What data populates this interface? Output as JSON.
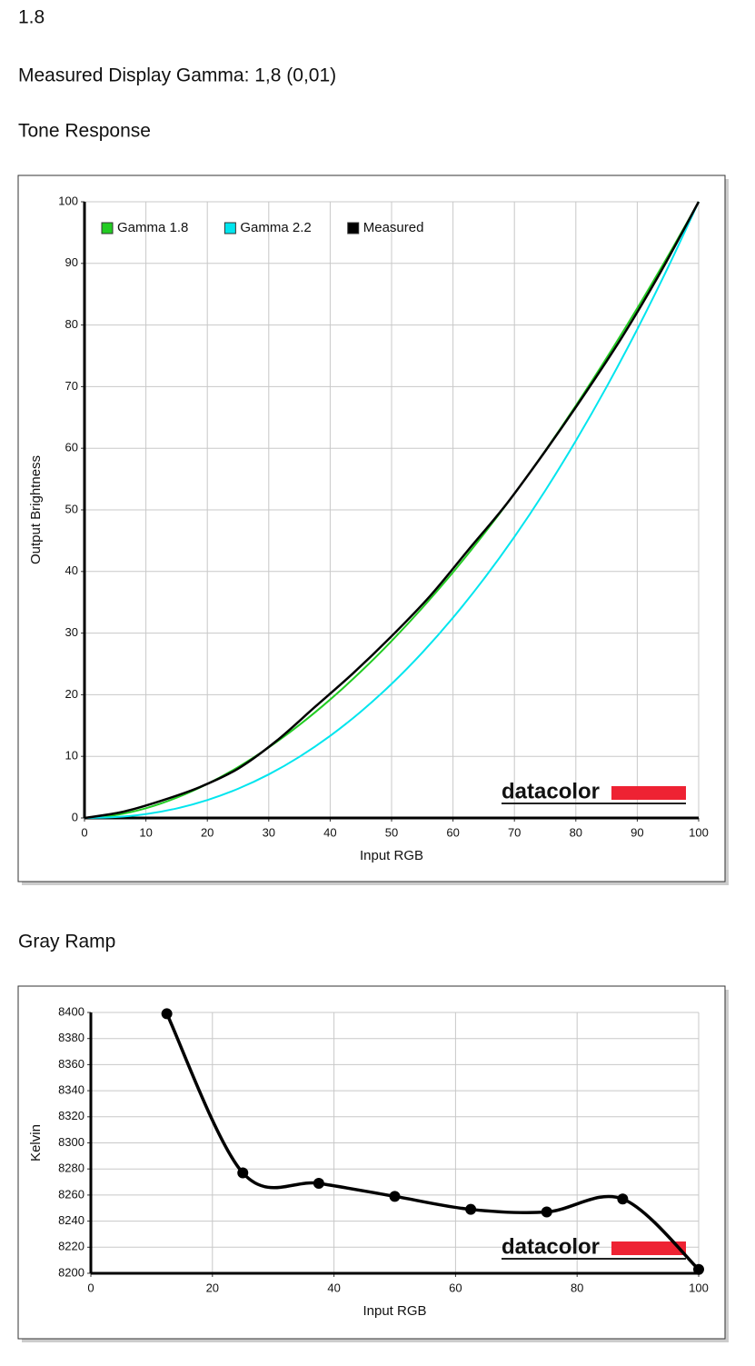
{
  "texts": {
    "gamma_value": "1.8",
    "measured": "Measured Display Gamma: 1,8 (0,01)",
    "tone_heading": "Tone Response",
    "gray_heading": "Gray Ramp"
  },
  "chart_data": [
    {
      "type": "line",
      "xlabel": "Input RGB",
      "ylabel": "Output Brightness",
      "logo": "datacolor",
      "xlim": [
        0,
        100
      ],
      "xticks": [
        0,
        10,
        20,
        30,
        40,
        50,
        60,
        70,
        80,
        90,
        100
      ],
      "ylim": [
        0,
        100
      ],
      "yticks": [
        0,
        10,
        20,
        30,
        40,
        50,
        60,
        70,
        80,
        90,
        100
      ],
      "grid": true,
      "legend": "upper-left",
      "series": [
        {
          "name": "Gamma 1.8",
          "color": "#22cc22",
          "x": [
            0,
            5,
            10,
            15,
            20,
            25,
            30,
            35,
            40,
            45,
            50,
            55,
            60,
            65,
            70,
            75,
            80,
            85,
            90,
            95,
            100
          ],
          "values": [
            0,
            0.46,
            1.58,
            3.29,
            5.52,
            8.25,
            11.45,
            15.11,
            19.22,
            23.76,
            28.72,
            34.09,
            39.87,
            46.05,
            52.62,
            59.58,
            66.92,
            74.64,
            82.72,
            91.18,
            100
          ]
        },
        {
          "name": "Gamma 2.2",
          "color": "#00e5ee",
          "x": [
            0,
            5,
            10,
            15,
            20,
            25,
            30,
            35,
            40,
            45,
            50,
            55,
            60,
            65,
            70,
            75,
            80,
            85,
            90,
            95,
            100
          ],
          "values": [
            0,
            0.14,
            0.63,
            1.54,
            2.9,
            4.74,
            7.07,
            9.93,
            13.32,
            17.26,
            21.76,
            26.84,
            32.5,
            38.76,
            45.62,
            53.1,
            61.21,
            69.94,
            79.31,
            89.33,
            100
          ]
        },
        {
          "name": "Measured",
          "color": "#000000",
          "x": [
            0,
            6.25,
            12.5,
            18.75,
            25,
            31.25,
            37.5,
            43.75,
            50,
            56.25,
            62.5,
            68.75,
            75,
            81.25,
            87.5,
            93.75,
            100
          ],
          "values": [
            0,
            1.0,
            2.8,
            5.0,
            8.0,
            12.5,
            18.0,
            23.5,
            29.5,
            36.0,
            43.5,
            51.0,
            59.5,
            68.5,
            78.0,
            88.5,
            100
          ]
        }
      ]
    },
    {
      "type": "line",
      "xlabel": "Input RGB",
      "ylabel": "Kelvin",
      "logo": "datacolor",
      "xlim": [
        0,
        100
      ],
      "xticks": [
        0,
        20,
        40,
        60,
        80,
        100
      ],
      "ylim": [
        8200,
        8400
      ],
      "yticks": [
        8200,
        8220,
        8240,
        8260,
        8280,
        8300,
        8320,
        8340,
        8360,
        8380,
        8400
      ],
      "grid": true,
      "markers": true,
      "series": [
        {
          "color": "#000000",
          "x": [
            12.5,
            25,
            37.5,
            50,
            62.5,
            75,
            87.5,
            100
          ],
          "values": [
            8399,
            8277,
            8269,
            8259,
            8249,
            8247,
            8257,
            8203
          ]
        }
      ]
    }
  ]
}
